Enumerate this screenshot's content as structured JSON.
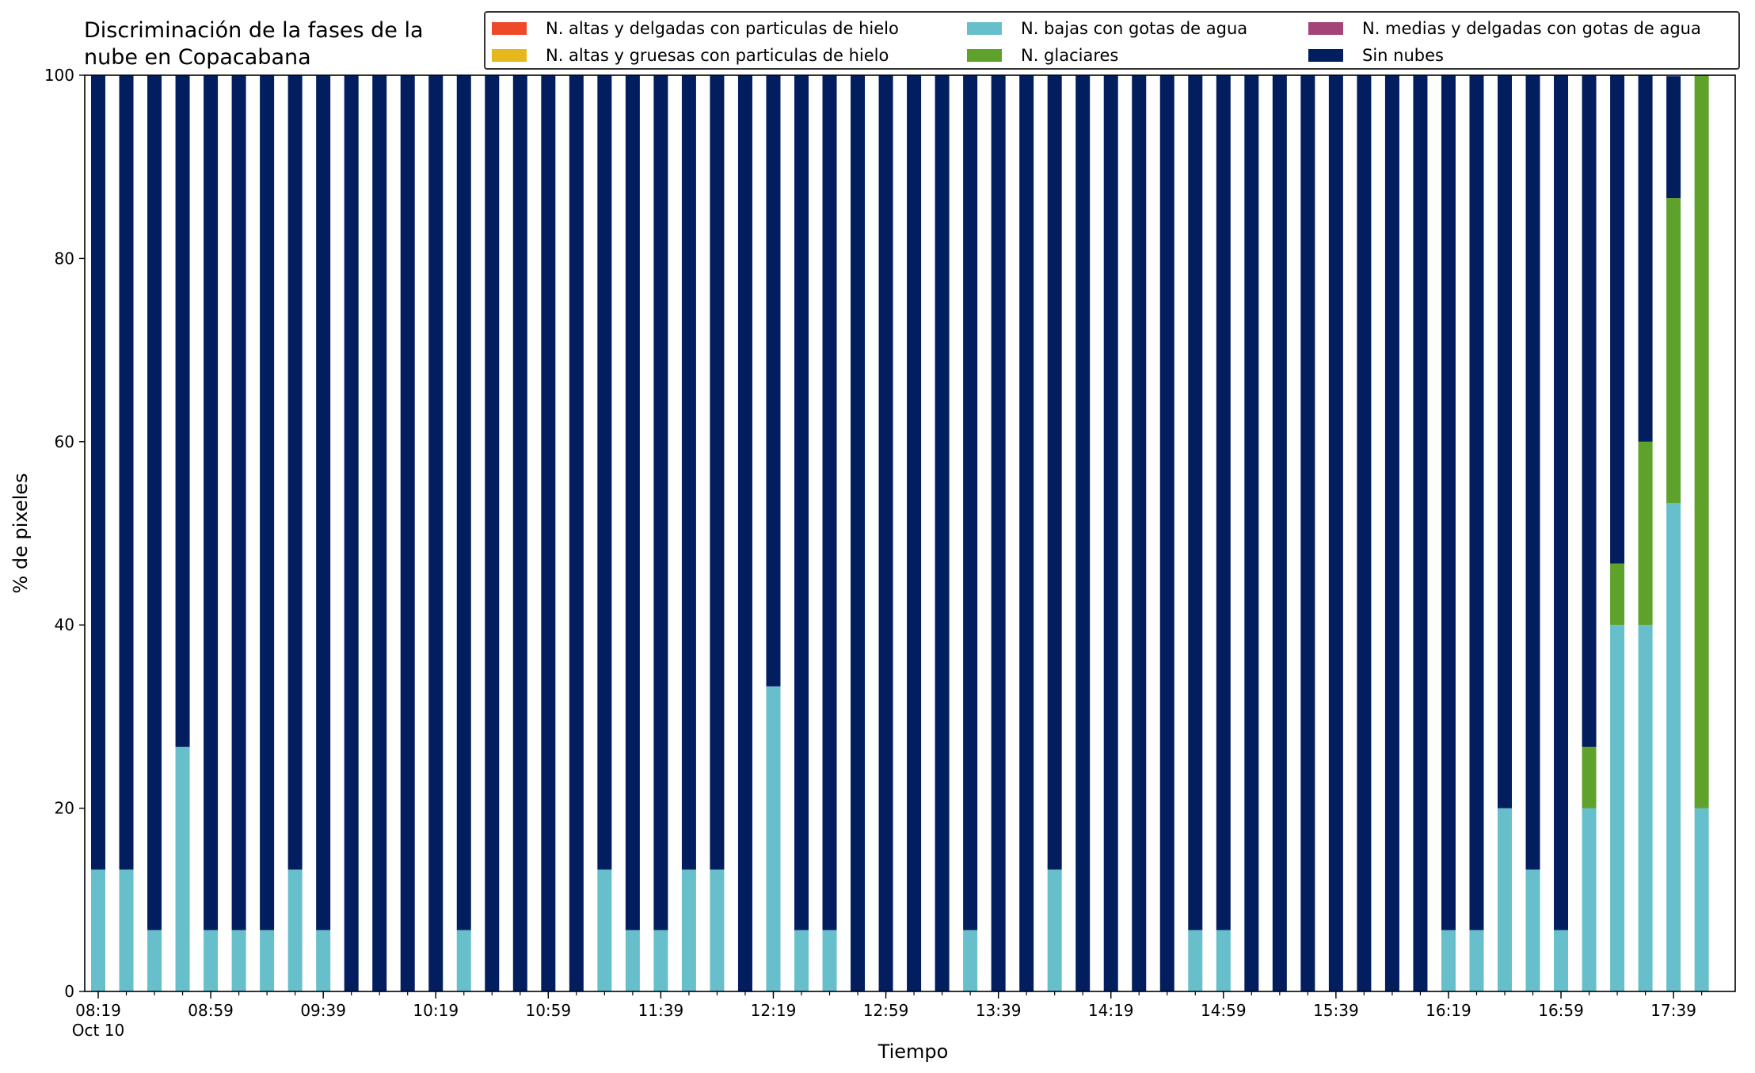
{
  "chart_data": {
    "type": "bar",
    "stacked": true,
    "title": "Discriminación de la fases de la\nnube en Copacabana",
    "xlabel": "Tiempo",
    "ylabel": "% de pixeles",
    "ylim": [
      0,
      100
    ],
    "yticks": [
      0,
      20,
      40,
      60,
      80,
      100
    ],
    "xtick_labels": [
      {
        "label": "08:19",
        "sublabel": "Oct 10",
        "bar_index": 0
      },
      {
        "label": "08:59",
        "bar_index": 4
      },
      {
        "label": "09:39",
        "bar_index": 8
      },
      {
        "label": "10:19",
        "bar_index": 12
      },
      {
        "label": "10:59",
        "bar_index": 16
      },
      {
        "label": "11:39",
        "bar_index": 20
      },
      {
        "label": "12:19",
        "bar_index": 24
      },
      {
        "label": "12:59",
        "bar_index": 28
      },
      {
        "label": "13:39",
        "bar_index": 32
      },
      {
        "label": "14:19",
        "bar_index": 36
      },
      {
        "label": "14:59",
        "bar_index": 40
      },
      {
        "label": "15:39",
        "bar_index": 44
      },
      {
        "label": "16:19",
        "bar_index": 48
      },
      {
        "label": "16:59",
        "bar_index": 52
      },
      {
        "label": "17:39",
        "bar_index": 56
      }
    ],
    "categories": [
      "08:19",
      "08:29",
      "08:39",
      "08:49",
      "08:59",
      "09:09",
      "09:19",
      "09:29",
      "09:39",
      "09:49",
      "09:59",
      "10:09",
      "10:19",
      "10:29",
      "10:39",
      "10:49",
      "10:59",
      "11:09",
      "11:19",
      "11:29",
      "11:39",
      "11:49",
      "11:59",
      "12:09",
      "12:19",
      "12:29",
      "12:39",
      "12:49",
      "12:59",
      "13:09",
      "13:19",
      "13:29",
      "13:39",
      "13:49",
      "13:59",
      "14:09",
      "14:19",
      "14:29",
      "14:39",
      "14:49",
      "14:59",
      "15:09",
      "15:19",
      "15:29",
      "15:39",
      "15:49",
      "15:59",
      "16:09",
      "16:19",
      "16:29",
      "16:39",
      "16:49",
      "16:59",
      "17:09",
      "17:19",
      "17:29",
      "17:39",
      "17:49"
    ],
    "series": [
      {
        "name": "N. altas y delgadas con particulas de hielo",
        "color": "#EE4A2A",
        "values": [
          0,
          0,
          0,
          0,
          0,
          0,
          0,
          0,
          0,
          0,
          0,
          0,
          0,
          0,
          0,
          0,
          0,
          0,
          0,
          0,
          0,
          0,
          0,
          0,
          0,
          0,
          0,
          0,
          0,
          0,
          0,
          0,
          0,
          0,
          0,
          0,
          0,
          0,
          0,
          0,
          0,
          0,
          0,
          0,
          0,
          0,
          0,
          0,
          0,
          0,
          0,
          0,
          0,
          0,
          0,
          0,
          0,
          0
        ]
      },
      {
        "name": "N. altas y gruesas con particulas de hielo",
        "color": "#E6B81E",
        "values": [
          0,
          0,
          0,
          0,
          0,
          0,
          0,
          0,
          0,
          0,
          0,
          0,
          0,
          0,
          0,
          0,
          0,
          0,
          0,
          0,
          0,
          0,
          0,
          0,
          0,
          0,
          0,
          0,
          0,
          0,
          0,
          0,
          0,
          0,
          0,
          0,
          0,
          0,
          0,
          0,
          0,
          0,
          0,
          0,
          0,
          0,
          0,
          0,
          0,
          0,
          0,
          0,
          0,
          0,
          0,
          0,
          0,
          0
        ]
      },
      {
        "name": "N. bajas con gotas de agua",
        "color": "#67BFCB",
        "values": [
          13.3,
          13.3,
          6.7,
          26.7,
          6.7,
          6.7,
          6.7,
          13.3,
          6.7,
          0,
          0,
          0,
          0,
          6.7,
          0,
          0,
          0,
          0,
          13.3,
          6.7,
          6.7,
          13.3,
          13.3,
          0,
          33.3,
          6.7,
          6.7,
          0,
          0,
          0,
          0,
          6.7,
          0,
          0,
          13.3,
          0,
          0,
          0,
          0,
          6.7,
          6.7,
          0,
          0,
          0,
          0,
          0,
          0,
          0,
          6.7,
          6.7,
          20,
          13.3,
          6.7,
          20,
          40,
          40,
          53.3,
          20
        ]
      },
      {
        "name": "N. glaciares",
        "color": "#5EA22C",
        "values": [
          0,
          0,
          0,
          0,
          0,
          0,
          0,
          0,
          0,
          0,
          0,
          0,
          0,
          0,
          0,
          0,
          0,
          0,
          0,
          0,
          0,
          0,
          0,
          0,
          0,
          0,
          0,
          0,
          0,
          0,
          0,
          0,
          0,
          0,
          0,
          0,
          0,
          0,
          0,
          0,
          0,
          0,
          0,
          0,
          0,
          0,
          0,
          0,
          0,
          0,
          0,
          0,
          0,
          6.7,
          6.7,
          20,
          33.3,
          80
        ]
      },
      {
        "name": "N. medias y delgadas con gotas de agua",
        "color": "#A34478",
        "values": [
          0,
          0,
          0,
          0,
          0,
          0,
          0,
          0,
          0,
          0,
          0,
          0,
          0,
          0,
          0,
          0,
          0,
          0,
          0,
          0,
          0,
          0,
          0,
          0,
          0,
          0,
          0,
          0,
          0,
          0,
          0,
          0,
          0,
          0,
          0,
          0,
          0,
          0,
          0,
          0,
          0,
          0,
          0,
          0,
          0,
          0,
          0,
          0,
          0,
          0,
          0,
          0,
          0,
          0,
          0,
          0,
          0,
          0
        ]
      },
      {
        "name": "Sin nubes",
        "color": "#021E5E",
        "values": [
          86.7,
          86.7,
          93.3,
          73.3,
          93.3,
          93.3,
          93.3,
          86.7,
          93.3,
          100,
          100,
          100,
          100,
          93.3,
          100,
          100,
          100,
          100,
          86.7,
          93.3,
          93.3,
          86.7,
          86.7,
          100,
          66.7,
          93.3,
          93.3,
          100,
          100,
          100,
          100,
          93.3,
          100,
          100,
          86.7,
          100,
          100,
          100,
          100,
          93.3,
          93.3,
          100,
          100,
          100,
          100,
          100,
          100,
          100,
          93.3,
          93.3,
          80,
          86.7,
          93.3,
          73.3,
          53.3,
          40,
          13.3,
          0
        ]
      }
    ],
    "legend": {
      "placement": "top-right",
      "columns": 3,
      "order": [
        0,
        1,
        2,
        3,
        4,
        5
      ]
    }
  }
}
